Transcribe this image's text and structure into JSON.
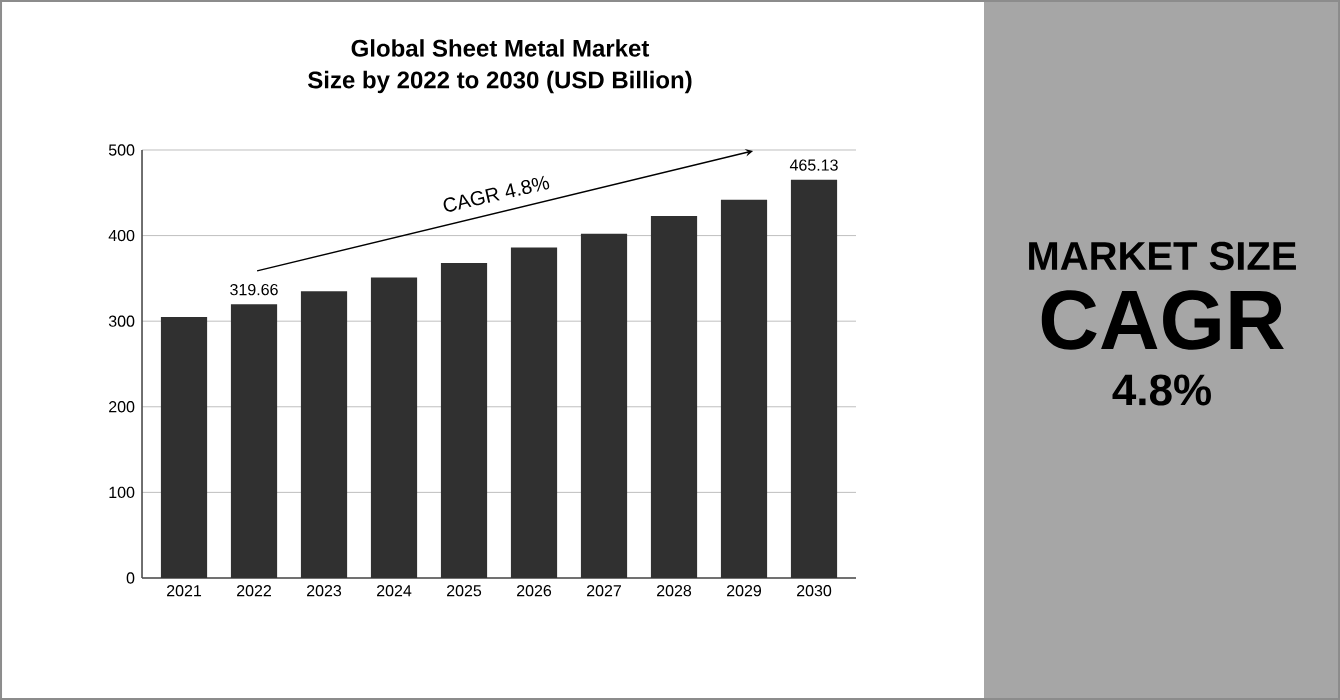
{
  "chart_data": [
    {
      "type": "bar",
      "title": "Global Sheet Metal Market",
      "subtitle": "Size by 2022 to 2030 (USD Billion)",
      "categories": [
        "2021",
        "2022",
        "2023",
        "2024",
        "2025",
        "2026",
        "2027",
        "2028",
        "2029",
        "2030"
      ],
      "values": [
        305,
        319.66,
        335,
        351,
        368,
        386,
        402,
        423,
        442,
        465.13
      ],
      "value_labels": [
        null,
        "319.66",
        null,
        null,
        null,
        null,
        null,
        null,
        null,
        "465.13"
      ],
      "color": "#303030",
      "ylim": [
        0,
        500
      ],
      "yticks": [
        0,
        100,
        200,
        300,
        400,
        500
      ],
      "grid": "y",
      "annotations": [
        "CAGR  4.8%"
      ]
    },
    {
      "type": "other",
      "annotations": [
        "MARKET SIZE",
        "CAGR",
        "4.8%"
      ]
    }
  ]
}
